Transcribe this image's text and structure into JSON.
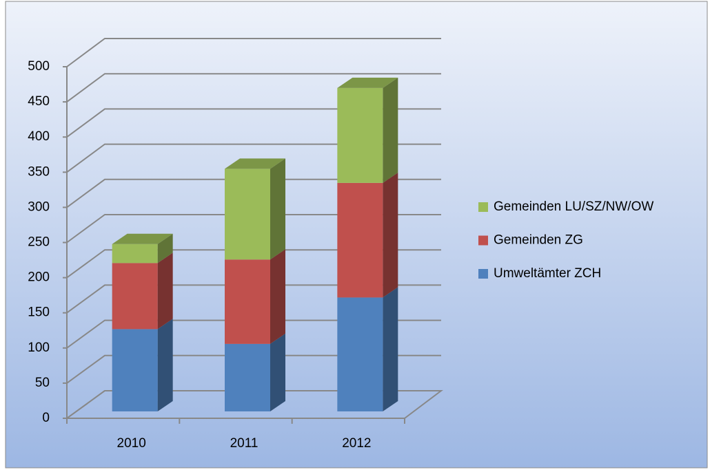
{
  "chart_data": {
    "type": "bar3d_stacked",
    "categories": [
      "2010",
      "2011",
      "2012"
    ],
    "series": [
      {
        "name": "Umweltämter ZCH",
        "color": "#4f81bd",
        "values": [
          117,
          96,
          162
        ]
      },
      {
        "name": "Gemeinden ZG",
        "color": "#c0504d",
        "values": [
          94,
          120,
          163
        ]
      },
      {
        "name": "Gemeinden LU/SZ/NW/OW",
        "color": "#9bbb59",
        "values": [
          27,
          129,
          135
        ]
      }
    ],
    "ylim": [
      0,
      500
    ],
    "yticks": [
      0,
      50,
      100,
      150,
      200,
      250,
      300,
      350,
      400,
      450,
      500
    ],
    "grid": true
  }
}
